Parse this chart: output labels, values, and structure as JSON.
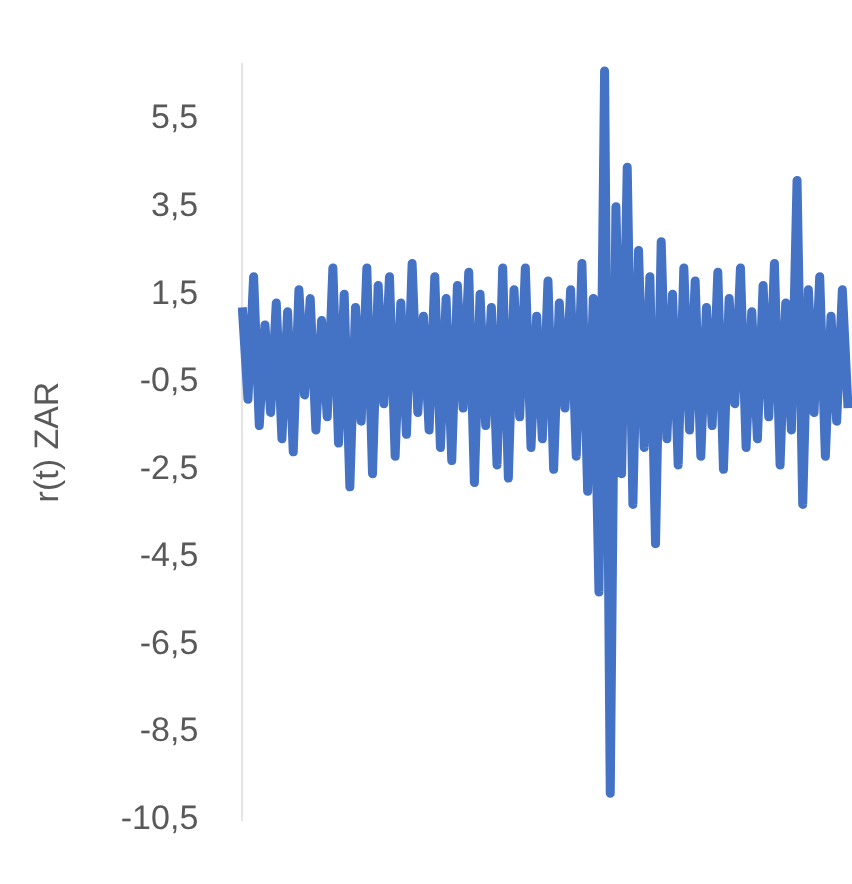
{
  "chart_data": {
    "type": "line",
    "ylabel": "r(t) ZAR",
    "categories": [
      null,
      null,
      null,
      null,
      null,
      null,
      null,
      null,
      null,
      null,
      null,
      null,
      null,
      null,
      null,
      null,
      null,
      null,
      null,
      null,
      null,
      null,
      null,
      null,
      null,
      null,
      null,
      null,
      null,
      null,
      null,
      null,
      null,
      null,
      null,
      null,
      null,
      null,
      null,
      null,
      null,
      null,
      null,
      null,
      null,
      null,
      null,
      null,
      null,
      null,
      null,
      null,
      null,
      null,
      null,
      null,
      null,
      null,
      null,
      null,
      null,
      null,
      null,
      null,
      null,
      null,
      null,
      null,
      null,
      null,
      null,
      null,
      null,
      null,
      null,
      null,
      null,
      null,
      null,
      null,
      null,
      null,
      null,
      null,
      null,
      null,
      null,
      null,
      null,
      null,
      null,
      null,
      null,
      null,
      null,
      null,
      null,
      null,
      null,
      null,
      null,
      null,
      null,
      null,
      null,
      null,
      null,
      null
    ],
    "series": [
      {
        "color": "#4472c4",
        "values": [
          1.2,
          -0.9,
          1.9,
          -1.5,
          0.8,
          -1.2,
          1.3,
          -1.8,
          1.1,
          -2.1,
          1.6,
          -0.8,
          1.4,
          -1.6,
          0.9,
          -1.3,
          2.1,
          -1.9,
          1.5,
          -2.9,
          1.2,
          -1.4,
          2.1,
          -2.6,
          1.7,
          -1.0,
          1.9,
          -2.2,
          1.3,
          -1.7,
          2.2,
          -1.2,
          1.0,
          -1.6,
          1.9,
          -2.0,
          1.4,
          -2.3,
          1.7,
          -1.1,
          2.0,
          -2.8,
          1.5,
          -1.5,
          1.2,
          -2.4,
          2.1,
          -2.7,
          1.6,
          -1.3,
          2.1,
          -2.0,
          1.0,
          -1.8,
          1.8,
          -2.5,
          1.3,
          -1.1,
          1.6,
          -2.2,
          2.2,
          -3.0,
          1.4,
          -5.3,
          6.6,
          -9.9,
          3.5,
          -2.6,
          4.4,
          -3.3,
          2.5,
          -2.0,
          1.9,
          -4.2,
          2.7,
          -1.8,
          1.5,
          -2.4,
          2.1,
          -1.6,
          1.8,
          -2.2,
          1.2,
          -1.5,
          2.0,
          -2.5,
          1.4,
          -1.0,
          2.1,
          -2.0,
          1.1,
          -1.8,
          1.7,
          -1.3,
          2.2,
          -2.4,
          1.3,
          -1.6,
          4.1,
          -3.3,
          1.6,
          -1.2,
          1.9,
          -2.2,
          1.0,
          -1.4,
          1.6,
          -1.1
        ]
      }
    ],
    "ylim": [
      -10.5,
      6.75
    ],
    "yticks": [
      {
        "value": 5.5,
        "label": "5,5"
      },
      {
        "value": 3.5,
        "label": "3,5"
      },
      {
        "value": 1.5,
        "label": "1,5"
      },
      {
        "value": -0.5,
        "label": "-0,5"
      },
      {
        "value": -2.5,
        "label": "-2,5"
      },
      {
        "value": -4.5,
        "label": "-4,5"
      },
      {
        "value": -6.5,
        "label": "-6,5"
      },
      {
        "value": -8.5,
        "label": "-8,5"
      },
      {
        "value": -10.5,
        "label": "-10,5"
      }
    ],
    "grid": false,
    "legend": false,
    "marker": "none",
    "line_style": "solid"
  }
}
